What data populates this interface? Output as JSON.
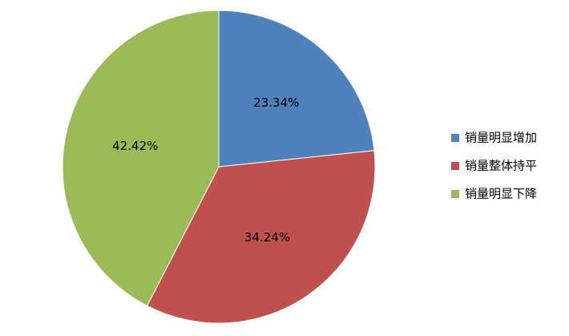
{
  "chart_data": {
    "type": "pie",
    "categories": [
      "销量明显增加",
      "销量整体持平",
      "销量明显下降"
    ],
    "values": [
      23.34,
      34.24,
      42.42
    ],
    "value_labels": [
      "23.34%",
      "34.24%",
      "42.42%"
    ],
    "colors": [
      "#4f81bd",
      "#c0504d",
      "#9bbb59"
    ],
    "legend": "right"
  }
}
